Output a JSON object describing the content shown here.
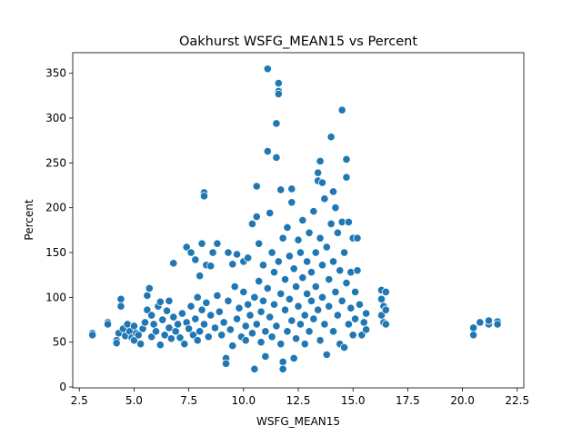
{
  "chart_data": {
    "type": "scatter",
    "title": "Oakhurst WSFG_MEAN15 vs Percent",
    "xlabel": "WSFG_MEAN15",
    "ylabel": "Percent",
    "xlim": [
      2.2,
      22.8
    ],
    "ylim": [
      -1,
      373
    ],
    "xticks": [
      2.5,
      5.0,
      7.5,
      10.0,
      12.5,
      15.0,
      17.5,
      20.0,
      22.5
    ],
    "xtick_labels": [
      "2.5",
      "5.0",
      "7.5",
      "10.0",
      "12.5",
      "15.0",
      "17.5",
      "20.0",
      "22.5"
    ],
    "yticks": [
      0,
      50,
      100,
      150,
      200,
      250,
      300,
      350
    ],
    "ytick_labels": [
      "0",
      "50",
      "100",
      "150",
      "200",
      "250",
      "300",
      "350"
    ],
    "grid": false,
    "legend": "none",
    "marker_color": "#1f77b4",
    "marker_edge": "#ffffff",
    "series": [
      {
        "name": "",
        "points": [
          [
            3.1,
            60
          ],
          [
            3.1,
            58
          ],
          [
            3.8,
            72
          ],
          [
            3.8,
            70
          ],
          [
            4.2,
            52
          ],
          [
            4.2,
            49
          ],
          [
            4.3,
            60
          ],
          [
            4.4,
            98
          ],
          [
            4.4,
            90
          ],
          [
            4.5,
            65
          ],
          [
            4.6,
            57
          ],
          [
            4.7,
            70
          ],
          [
            4.8,
            62
          ],
          [
            4.9,
            55
          ],
          [
            5.0,
            68
          ],
          [
            5.0,
            52
          ],
          [
            5.1,
            60
          ],
          [
            5.2,
            58
          ],
          [
            5.3,
            48
          ],
          [
            5.4,
            65
          ],
          [
            5.5,
            72
          ],
          [
            5.6,
            102
          ],
          [
            5.6,
            86
          ],
          [
            5.7,
            110
          ],
          [
            5.8,
            80
          ],
          [
            5.8,
            56
          ],
          [
            5.9,
            70
          ],
          [
            6.0,
            62
          ],
          [
            6.1,
            90
          ],
          [
            6.2,
            95
          ],
          [
            6.2,
            47
          ],
          [
            6.3,
            75
          ],
          [
            6.4,
            58
          ],
          [
            6.5,
            85
          ],
          [
            6.6,
            96
          ],
          [
            6.6,
            66
          ],
          [
            6.7,
            54
          ],
          [
            6.8,
            138
          ],
          [
            6.8,
            78
          ],
          [
            6.9,
            62
          ],
          [
            7.0,
            70
          ],
          [
            7.1,
            55
          ],
          [
            7.2,
            82
          ],
          [
            7.3,
            48
          ],
          [
            7.4,
            156
          ],
          [
            7.4,
            72
          ],
          [
            7.5,
            65
          ],
          [
            7.6,
            150
          ],
          [
            7.6,
            90
          ],
          [
            7.7,
            58
          ],
          [
            7.8,
            142
          ],
          [
            7.8,
            76
          ],
          [
            7.9,
            100
          ],
          [
            7.9,
            52
          ],
          [
            8.0,
            124
          ],
          [
            8.0,
            62
          ],
          [
            8.1,
            160
          ],
          [
            8.1,
            86
          ],
          [
            8.2,
            217
          ],
          [
            8.2,
            213
          ],
          [
            8.2,
            70
          ],
          [
            8.3,
            136
          ],
          [
            8.3,
            94
          ],
          [
            8.4,
            56
          ],
          [
            8.5,
            135
          ],
          [
            8.5,
            80
          ],
          [
            8.6,
            150
          ],
          [
            8.7,
            66
          ],
          [
            8.8,
            160
          ],
          [
            8.8,
            102
          ],
          [
            8.9,
            84
          ],
          [
            9.0,
            58
          ],
          [
            9.1,
            72
          ],
          [
            9.2,
            32
          ],
          [
            9.2,
            26
          ],
          [
            9.3,
            150
          ],
          [
            9.3,
            96
          ],
          [
            9.4,
            64
          ],
          [
            9.5,
            137
          ],
          [
            9.5,
            46
          ],
          [
            9.6,
            112
          ],
          [
            9.7,
            76
          ],
          [
            9.7,
            148
          ],
          [
            9.8,
            88
          ],
          [
            9.9,
            56
          ],
          [
            10.0,
            140
          ],
          [
            10.0,
            106
          ],
          [
            10.1,
            68
          ],
          [
            10.1,
            52
          ],
          [
            10.2,
            144
          ],
          [
            10.2,
            92
          ],
          [
            10.3,
            80
          ],
          [
            10.4,
            182
          ],
          [
            10.4,
            60
          ],
          [
            10.5,
            100
          ],
          [
            10.5,
            20
          ],
          [
            10.6,
            224
          ],
          [
            10.6,
            190
          ],
          [
            10.6,
            70
          ],
          [
            10.7,
            160
          ],
          [
            10.7,
            118
          ],
          [
            10.8,
            84
          ],
          [
            10.8,
            50
          ],
          [
            10.9,
            136
          ],
          [
            10.9,
            96
          ],
          [
            11.0,
            62
          ],
          [
            11.0,
            34
          ],
          [
            11.1,
            355
          ],
          [
            11.1,
            263
          ],
          [
            11.1,
            110
          ],
          [
            11.2,
            194
          ],
          [
            11.2,
            78
          ],
          [
            11.3,
            150
          ],
          [
            11.3,
            56
          ],
          [
            11.4,
            128
          ],
          [
            11.4,
            92
          ],
          [
            11.5,
            294
          ],
          [
            11.5,
            256
          ],
          [
            11.5,
            68
          ],
          [
            11.6,
            339
          ],
          [
            11.6,
            330
          ],
          [
            11.6,
            327
          ],
          [
            11.6,
            140
          ],
          [
            11.7,
            220
          ],
          [
            11.7,
            104
          ],
          [
            11.7,
            48
          ],
          [
            11.8,
            28
          ],
          [
            11.8,
            20
          ],
          [
            11.8,
            166
          ],
          [
            11.9,
            86
          ],
          [
            11.9,
            120
          ],
          [
            12.0,
            62
          ],
          [
            12.0,
            178
          ],
          [
            12.1,
            146
          ],
          [
            12.1,
            98
          ],
          [
            12.2,
            221
          ],
          [
            12.2,
            206
          ],
          [
            12.2,
            74
          ],
          [
            12.3,
            32
          ],
          [
            12.3,
            132
          ],
          [
            12.4,
            112
          ],
          [
            12.4,
            54
          ],
          [
            12.5,
            164
          ],
          [
            12.5,
            90
          ],
          [
            12.6,
            70
          ],
          [
            12.6,
            150
          ],
          [
            12.7,
            186
          ],
          [
            12.7,
            122
          ],
          [
            12.8,
            80
          ],
          [
            12.8,
            48
          ],
          [
            12.9,
            140
          ],
          [
            12.9,
            104
          ],
          [
            13.0,
            172
          ],
          [
            13.0,
            62
          ],
          [
            13.1,
            96
          ],
          [
            13.1,
            128
          ],
          [
            13.2,
            196
          ],
          [
            13.2,
            76
          ],
          [
            13.3,
            150
          ],
          [
            13.3,
            112
          ],
          [
            13.4,
            239
          ],
          [
            13.4,
            230
          ],
          [
            13.4,
            86
          ],
          [
            13.5,
            252
          ],
          [
            13.5,
            166
          ],
          [
            13.5,
            52
          ],
          [
            13.6,
            228
          ],
          [
            13.6,
            136
          ],
          [
            13.6,
            100
          ],
          [
            13.7,
            210
          ],
          [
            13.7,
            70
          ],
          [
            13.8,
            36
          ],
          [
            13.8,
            156
          ],
          [
            13.9,
            120
          ],
          [
            13.9,
            90
          ],
          [
            14.0,
            279
          ],
          [
            14.0,
            182
          ],
          [
            14.1,
            218
          ],
          [
            14.1,
            140
          ],
          [
            14.1,
            62
          ],
          [
            14.2,
            200
          ],
          [
            14.2,
            106
          ],
          [
            14.3,
            172
          ],
          [
            14.3,
            80
          ],
          [
            14.4,
            130
          ],
          [
            14.4,
            48
          ],
          [
            14.5,
            309
          ],
          [
            14.5,
            184
          ],
          [
            14.5,
            96
          ],
          [
            14.6,
            44
          ],
          [
            14.6,
            150
          ],
          [
            14.7,
            254
          ],
          [
            14.7,
            234
          ],
          [
            14.7,
            116
          ],
          [
            14.8,
            184
          ],
          [
            14.8,
            70
          ],
          [
            14.9,
            128
          ],
          [
            14.9,
            88
          ],
          [
            15.0,
            166
          ],
          [
            15.0,
            58
          ],
          [
            15.1,
            106
          ],
          [
            15.1,
            76
          ],
          [
            15.2,
            130
          ],
          [
            15.2,
            166
          ],
          [
            15.3,
            92
          ],
          [
            15.4,
            58
          ],
          [
            15.5,
            72
          ],
          [
            15.6,
            82
          ],
          [
            15.6,
            64
          ],
          [
            16.3,
            108
          ],
          [
            16.3,
            98
          ],
          [
            16.3,
            80
          ],
          [
            16.4,
            72
          ],
          [
            16.4,
            90
          ],
          [
            16.5,
            106
          ],
          [
            16.5,
            70
          ],
          [
            16.5,
            86
          ],
          [
            20.5,
            66
          ],
          [
            20.5,
            58
          ],
          [
            20.8,
            72
          ],
          [
            21.2,
            70
          ],
          [
            21.2,
            74
          ],
          [
            21.6,
            73
          ],
          [
            21.6,
            70
          ]
        ]
      }
    ]
  }
}
